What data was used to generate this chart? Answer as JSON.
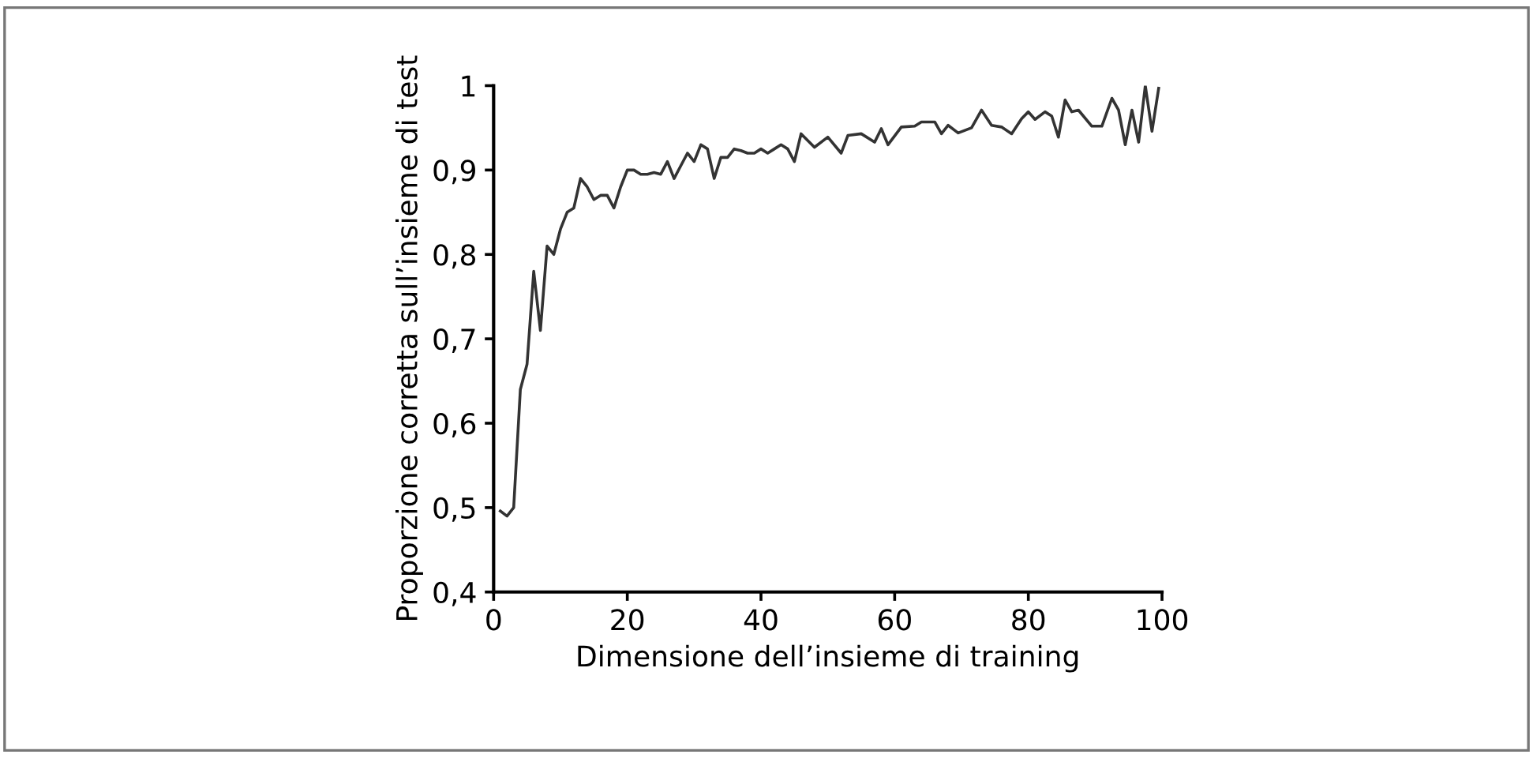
{
  "chart_data": {
    "type": "line",
    "xlabel": "Dimensione dell’insieme di training",
    "ylabel": "Proporzione corretta sull’insieme di test",
    "series": [
      {
        "color": "#333333",
        "x": [
          1,
          2,
          3,
          4,
          5,
          6,
          7,
          8,
          9,
          10,
          11,
          12,
          13,
          14,
          15,
          16,
          17,
          18,
          19,
          20,
          21,
          22,
          23,
          24,
          25,
          26,
          27,
          28,
          29,
          30,
          31,
          32,
          33,
          34,
          35,
          36,
          37,
          38,
          39,
          40,
          41,
          42,
          43,
          44,
          45,
          46,
          48,
          50,
          52,
          53,
          55,
          57,
          58,
          59,
          61,
          63,
          64,
          66,
          67,
          68,
          69.5,
          71.5,
          73,
          74.5,
          76,
          77.5,
          79,
          80,
          81,
          82.5,
          83.5,
          84.5,
          85.5,
          86.5,
          87.5,
          89.5,
          91,
          92.5,
          93.5,
          94.5,
          95.5,
          96.5,
          97.5,
          98.5,
          99.5
        ],
        "values": [
          0.496,
          0.49,
          0.5,
          0.64,
          0.67,
          0.78,
          0.71,
          0.81,
          0.8,
          0.83,
          0.85,
          0.855,
          0.89,
          0.88,
          0.865,
          0.87,
          0.87,
          0.855,
          0.88,
          0.9,
          0.9,
          0.895,
          0.895,
          0.897,
          0.895,
          0.91,
          0.89,
          0.905,
          0.92,
          0.91,
          0.93,
          0.925,
          0.89,
          0.915,
          0.915,
          0.925,
          0.923,
          0.92,
          0.92,
          0.925,
          0.92,
          0.925,
          0.93,
          0.925,
          0.91,
          0.943,
          0.927,
          0.939,
          0.92,
          0.941,
          0.943,
          0.933,
          0.949,
          0.93,
          0.951,
          0.952,
          0.957,
          0.957,
          0.943,
          0.953,
          0.944,
          0.95,
          0.971,
          0.953,
          0.951,
          0.943,
          0.961,
          0.969,
          0.96,
          0.969,
          0.964,
          0.939,
          0.983,
          0.969,
          0.971,
          0.952,
          0.952,
          0.985,
          0.971,
          0.93,
          0.971,
          0.933,
          1.0,
          0.946,
          0.997
        ]
      }
    ],
    "xlim": [
      0,
      100
    ],
    "xticks": [
      0,
      20,
      40,
      60,
      80,
      100
    ],
    "ylim": [
      0.4,
      1
    ],
    "yticks": [
      {
        "value": 0.4,
        "label": "0,4"
      },
      {
        "value": 0.5,
        "label": "0,5"
      },
      {
        "value": 0.6,
        "label": "0,6"
      },
      {
        "value": 0.7,
        "label": "0,7"
      },
      {
        "value": 0.8,
        "label": "0,8"
      },
      {
        "value": 0.9,
        "label": "0,9"
      },
      1
    ],
    "grid": false,
    "line_style": "solid"
  }
}
